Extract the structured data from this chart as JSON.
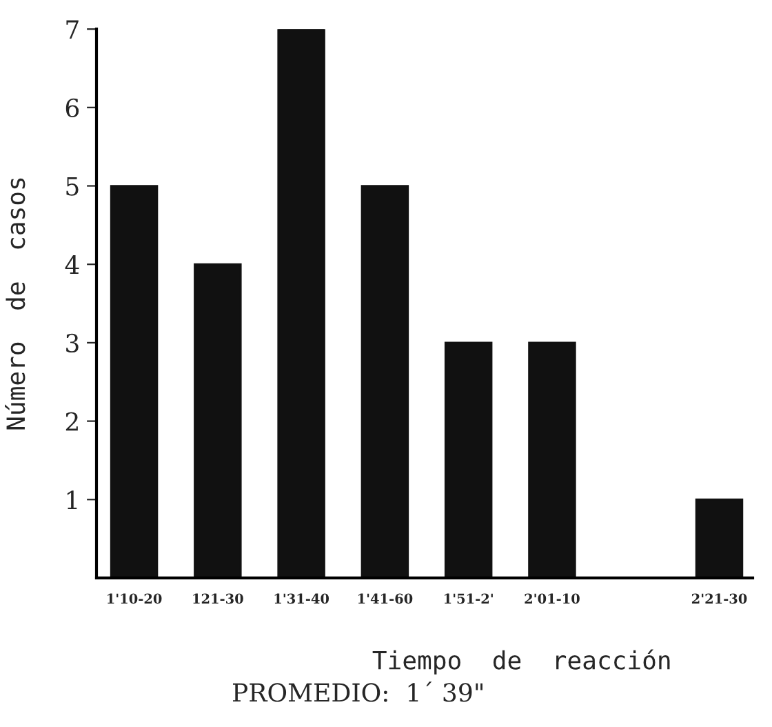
{
  "chart_data": {
    "type": "bar",
    "xlabel": "Tiempo  de  reacción",
    "ylabel": "Número  de  casos",
    "annotations": [
      "PROMEDIO:  1´ 39\""
    ],
    "categories": [
      "1'10-20",
      "121-30",
      "1'31-40",
      "1'41-60",
      "1'51-2'",
      "2'01-10",
      null,
      "2'21-30"
    ],
    "values": [
      5,
      4,
      7,
      5,
      3,
      3,
      0,
      1
    ],
    "color": "#111111",
    "ylim": [
      0,
      7
    ],
    "yticks": [
      1,
      2,
      3,
      4,
      5,
      6,
      7
    ],
    "grid": false,
    "legend": false
  }
}
